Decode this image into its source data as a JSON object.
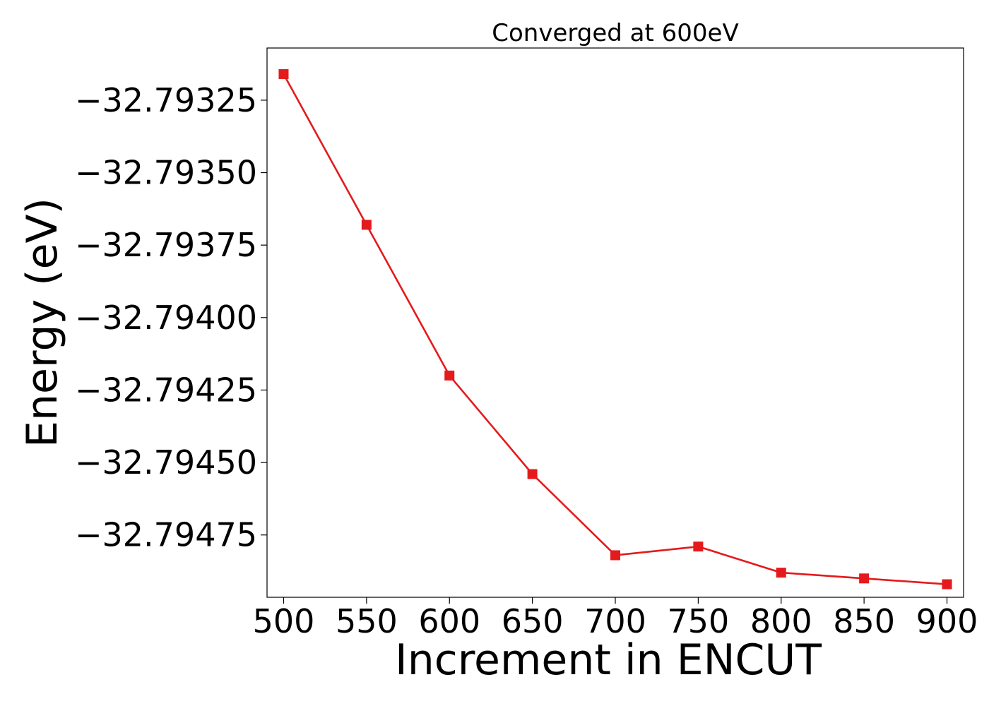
{
  "chart_data": {
    "type": "line",
    "title": "Converged at 600eV",
    "xlabel": "Increment in ENCUT",
    "ylabel": "Energy (eV)",
    "x": [
      500,
      550,
      600,
      650,
      700,
      750,
      800,
      850,
      900
    ],
    "series": [
      {
        "values": [
          -32.79316,
          -32.79368,
          -32.7942,
          -32.79454,
          -32.79482,
          -32.79479,
          -32.79488,
          -32.7949,
          -32.79492
        ],
        "color": "#e41a1c",
        "marker": "square"
      }
    ],
    "xticks": [
      500,
      550,
      600,
      650,
      700,
      750,
      800,
      850,
      900
    ],
    "xtick_labels": [
      "500",
      "550",
      "600",
      "650",
      "700",
      "750",
      "800",
      "850",
      "900"
    ],
    "yticks": [
      -32.79325,
      -32.7935,
      -32.79375,
      -32.794,
      -32.79425,
      -32.7945,
      -32.79475
    ],
    "ytick_labels": [
      "−32.79325",
      "−32.79350",
      "−32.79375",
      "−32.79400",
      "−32.79425",
      "−32.79450",
      "−32.79475"
    ],
    "xlim": [
      490,
      910
    ],
    "ylim": [
      -32.794965,
      -32.79307
    ],
    "grid": false,
    "legend": false
  }
}
